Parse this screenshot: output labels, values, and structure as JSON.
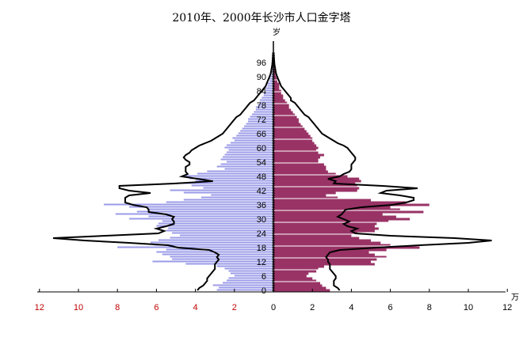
{
  "chart_data": {
    "type": "bar",
    "subtype": "population-pyramid",
    "title": "2010年、2000年长沙市人口金字塔",
    "ylabel": "岁",
    "xlabel": "万",
    "xlim": [
      -12,
      12
    ],
    "ylim": [
      0,
      100
    ],
    "x_tick_labels_left": [
      "12",
      "10",
      "8",
      "6",
      "4",
      "2",
      "0"
    ],
    "x_tick_labels_right": [
      "0",
      "2",
      "4",
      "6",
      "8",
      "10",
      "12"
    ],
    "x_ticks_left_values": [
      12,
      10,
      8,
      6,
      4,
      2,
      0
    ],
    "x_ticks_right_values": [
      0,
      2,
      4,
      6,
      8,
      10,
      12
    ],
    "y_tick_labels": [
      "0",
      "6",
      "12",
      "18",
      "24",
      "30",
      "36",
      "42",
      "48",
      "54",
      "60",
      "66",
      "72",
      "78",
      "84",
      "90",
      "96"
    ],
    "ages": "0-100",
    "colors": {
      "left_2010": "#9b9be8",
      "right_2010": "#993366",
      "outline_2000": "#000000",
      "left_ticks": "#c00000"
    },
    "series": [
      {
        "name": "2010 left",
        "side": "left",
        "style": "bars",
        "values": [
          2.9,
          2.8,
          3.1,
          2.6,
          2.4,
          2.3,
          2.0,
          2.2,
          2.3,
          2.5,
          2.9,
          4.5,
          6.2,
          5.2,
          5.3,
          5.7,
          6.0,
          5.5,
          8.0,
          6.1,
          6.3,
          5.9,
          5.3,
          4.8,
          5.2,
          5.5,
          5.4,
          6.0,
          5.9,
          5.7,
          7.4,
          6.4,
          8.1,
          7.0,
          6.4,
          7.4,
          8.7,
          5.5,
          4.6,
          3.7,
          3.2,
          4.6,
          5.3,
          3.6,
          4.2,
          4.8,
          4.0,
          4.3,
          4.5,
          3.9,
          3.4,
          2.5,
          2.9,
          2.7,
          2.4,
          2.7,
          2.6,
          2.5,
          2.4,
          2.3,
          2.5,
          2.4,
          2.2,
          2.0,
          2.1,
          1.9,
          1.8,
          1.7,
          1.6,
          1.5,
          1.4,
          1.3,
          1.3,
          1.2,
          1.1,
          1.0,
          0.9,
          0.9,
          0.8,
          0.7,
          0.7,
          0.6,
          0.5,
          0.5,
          0.4,
          0.4,
          0.3,
          0.3,
          0.2,
          0.2,
          0.15,
          0.1,
          0.1,
          0.08,
          0.06,
          0.05,
          0.04,
          0.03,
          0.02,
          0.02,
          0.01
        ]
      },
      {
        "name": "2010 right",
        "side": "right",
        "style": "bars",
        "values": [
          2.9,
          2.7,
          2.5,
          2.4,
          2.2,
          2.0,
          1.7,
          1.8,
          2.2,
          2.3,
          2.6,
          5.2,
          5.0,
          5.3,
          5.8,
          5.2,
          4.9,
          5.8,
          7.5,
          6.0,
          5.5,
          5.0,
          4.4,
          4.0,
          4.3,
          5.2,
          5.4,
          5.2,
          5.3,
          5.9,
          7.0,
          6.3,
          5.6,
          7.7,
          6.5,
          6.0,
          8.0,
          6.8,
          5.0,
          3.3,
          2.7,
          3.2,
          4.3,
          4.4,
          4.3,
          4.2,
          4.5,
          4.4,
          3.8,
          3.2,
          2.8,
          2.7,
          2.7,
          2.6,
          2.3,
          2.3,
          2.4,
          2.6,
          2.3,
          2.2,
          2.3,
          2.2,
          2.1,
          2.0,
          2.0,
          1.9,
          1.8,
          1.7,
          1.6,
          1.5,
          1.4,
          1.3,
          1.3,
          1.2,
          1.1,
          1.0,
          0.9,
          0.8,
          0.8,
          0.7,
          0.6,
          0.5,
          0.5,
          0.4,
          0.4,
          0.3,
          0.3,
          0.3,
          0.2,
          0.2,
          0.15,
          0.1,
          0.1,
          0.08,
          0.06,
          0.05,
          0.04,
          0.03,
          0.02,
          0.02,
          0.01
        ]
      },
      {
        "name": "2000 left",
        "side": "left",
        "style": "line",
        "values": [
          3.9,
          3.8,
          3.6,
          3.5,
          3.4,
          3.4,
          3.3,
          3.2,
          3.1,
          3.0,
          3.0,
          3.0,
          2.9,
          2.8,
          2.9,
          2.8,
          3.0,
          3.3,
          4.9,
          5.4,
          7.4,
          9.7,
          11.3,
          8.6,
          5.9,
          5.6,
          6.0,
          5.5,
          5.1,
          5.1,
          5.2,
          5.1,
          5.5,
          6.4,
          6.4,
          6.5,
          7.2,
          7.6,
          7.6,
          7.6,
          7.4,
          6.3,
          7.4,
          7.9,
          7.9,
          5.1,
          3.1,
          3.9,
          4.7,
          4.4,
          4.5,
          4.5,
          4.5,
          4.3,
          4.3,
          4.5,
          4.6,
          4.5,
          4.3,
          4.2,
          4.0,
          3.8,
          3.5,
          3.2,
          3.0,
          2.8,
          2.6,
          2.5,
          2.4,
          2.3,
          2.2,
          2.1,
          2.0,
          1.9,
          1.7,
          1.6,
          1.5,
          1.4,
          1.3,
          1.2,
          1.0,
          0.9,
          0.8,
          0.7,
          0.6,
          0.5,
          0.4,
          0.35,
          0.3,
          0.25,
          0.2,
          0.15,
          0.12,
          0.1,
          0.08,
          0.06,
          0.05,
          0.04,
          0.03,
          0.02,
          0.01
        ]
      },
      {
        "name": "2000 right",
        "side": "right",
        "style": "line",
        "values": [
          3.4,
          3.3,
          3.1,
          3.1,
          3.1,
          3.2,
          3.2,
          3.1,
          3.0,
          2.9,
          2.9,
          2.9,
          2.8,
          2.8,
          2.7,
          2.8,
          2.9,
          3.4,
          5.3,
          7.5,
          10.0,
          11.2,
          9.3,
          6.0,
          4.2,
          4.0,
          4.3,
          3.8,
          3.6,
          3.9,
          3.6,
          3.3,
          3.5,
          3.6,
          3.7,
          4.5,
          6.1,
          6.8,
          7.2,
          7.2,
          6.5,
          5.5,
          5.8,
          7.4,
          5.6,
          3.1,
          3.2,
          2.8,
          3.4,
          3.6,
          3.9,
          4.0,
          4.0,
          4.0,
          4.1,
          4.2,
          4.2,
          4.1,
          4.0,
          3.9,
          3.8,
          3.6,
          3.3,
          3.1,
          2.9,
          2.7,
          2.5,
          2.4,
          2.3,
          2.2,
          2.1,
          2.0,
          1.9,
          1.8,
          1.6,
          1.5,
          1.4,
          1.3,
          1.2,
          1.1,
          0.9,
          0.9,
          0.8,
          0.7,
          0.6,
          0.5,
          0.4,
          0.35,
          0.3,
          0.25,
          0.2,
          0.15,
          0.12,
          0.1,
          0.08,
          0.06,
          0.05,
          0.04,
          0.03,
          0.02,
          0.01
        ]
      }
    ]
  }
}
